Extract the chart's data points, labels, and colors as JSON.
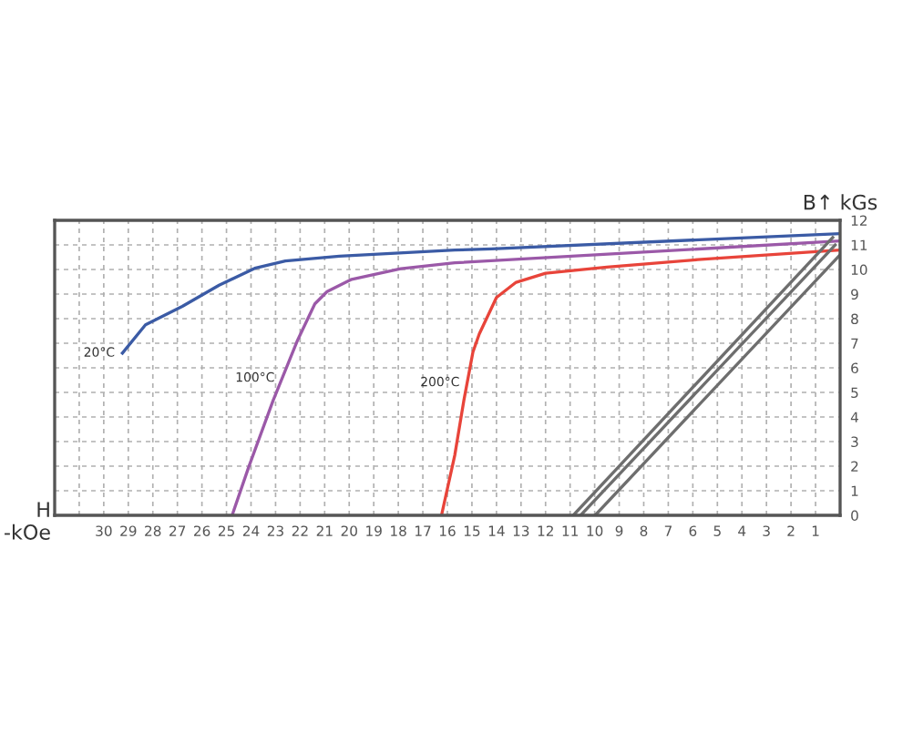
{
  "chart_data": {
    "type": "line",
    "xlabel": "H\n-kOe",
    "ylabel": "B↑ kGs",
    "xlim": [
      32,
      0
    ],
    "ylim": [
      0,
      12
    ],
    "xticks": [
      {
        "value": 31,
        "label": null
      },
      30,
      29,
      28,
      27,
      26,
      25,
      24,
      23,
      22,
      21,
      20,
      19,
      18,
      17,
      16,
      15,
      14,
      13,
      12,
      11,
      10,
      9,
      8,
      7,
      6,
      5,
      4,
      3,
      2,
      1
    ],
    "yticks": [
      0,
      1,
      2,
      3,
      4,
      5,
      6,
      7,
      8,
      9,
      10,
      11,
      12
    ],
    "grid": true,
    "marker": "none",
    "line_style": "solid",
    "series": [
      {
        "name": "20°C",
        "color": "#3b5ba5",
        "x": [
          29.24,
          28.3,
          26.8,
          25.3,
          23.85,
          22.6,
          20.4,
          15.7,
          14.2,
          0
        ],
        "values": [
          6.6,
          7.75,
          8.5,
          9.36,
          10.05,
          10.35,
          10.54,
          10.79,
          10.84,
          11.46
        ]
      },
      {
        "name": "100°C",
        "color": "#9b59a8",
        "x": [
          24.77,
          24.1,
          23.1,
          22.1,
          21.4,
          20.9,
          19.9,
          17.9,
          15.7,
          0
        ],
        "values": [
          0,
          1.95,
          4.67,
          7.13,
          8.6,
          9.1,
          9.6,
          10.03,
          10.27,
          11.16
        ]
      },
      {
        "name": "200°C",
        "color": "#e8443a",
        "x": [
          16.24,
          15.7,
          15.33,
          14.96,
          14.7,
          14.0,
          13.2,
          12.0,
          9.5,
          5.8,
          0
        ],
        "values": [
          0,
          2.44,
          4.67,
          6.64,
          7.38,
          8.86,
          9.48,
          9.85,
          10.1,
          10.4,
          10.79
        ]
      },
      {
        "color": "#6e6e6e",
        "x": [
          10.87,
          0.3
        ],
        "values": [
          0,
          11.3
        ]
      },
      {
        "color": "#6e6e6e",
        "x": [
          10.57,
          0.2
        ],
        "values": [
          0,
          11.0
        ]
      },
      {
        "color": "#6e6e6e",
        "x": [
          9.98,
          0.0
        ],
        "values": [
          0,
          10.6
        ]
      }
    ]
  }
}
